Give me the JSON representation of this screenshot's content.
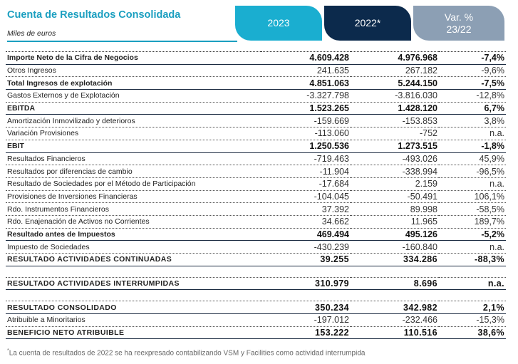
{
  "header": {
    "title": "Cuenta de Resultados Consolidada",
    "subtitle": "Miles de euros",
    "col_2023": "2023",
    "col_2022": "2022*",
    "col_var_1": "Var. %",
    "col_var_2": "23/22"
  },
  "rows": [
    {
      "label": "Importe Neto de la Cifra de Negocios",
      "v2023": "4.609.428",
      "v2022": "4.976.968",
      "var": "-7,4%",
      "bold": true
    },
    {
      "label": "Otros Ingresos",
      "v2023": "241.635",
      "v2022": "267.182",
      "var": "-9,6%"
    },
    {
      "label": "Total Ingresos de explotación",
      "v2023": "4.851.063",
      "v2022": "5.244.150",
      "var": "-7,5%",
      "bold": true
    },
    {
      "label": "Gastos Externos y de Explotación",
      "v2023": "-3.327.798",
      "v2022": "-3.816.030",
      "var": "-12,8%"
    },
    {
      "label": "EBITDA",
      "v2023": "1.523.265",
      "v2022": "1.428.120",
      "var": "6,7%",
      "bold": true
    },
    {
      "label": "Amortización Inmovilizado y deterioros",
      "v2023": "-159.669",
      "v2022": "-153.853",
      "var": "3,8%"
    },
    {
      "label": "Variación Provisiones",
      "v2023": "-113.060",
      "v2022": "-752",
      "var": "n.a."
    },
    {
      "label": "EBIT",
      "v2023": "1.250.536",
      "v2022": "1.273.515",
      "var": "-1,8%",
      "bold": true
    },
    {
      "label": "Resultados Financieros",
      "v2023": "-719.463",
      "v2022": "-493.026",
      "var": "45,9%"
    },
    {
      "label": "Resultados por diferencias de cambio",
      "v2023": "-11.904",
      "v2022": "-338.994",
      "var": "-96,5%"
    },
    {
      "label": "Resultado de Sociedades por el Método de Participación",
      "v2023": "-17.684",
      "v2022": "2.159",
      "var": "n.a."
    },
    {
      "label": "Provisiones de Inversiones Financieras",
      "v2023": "-104.045",
      "v2022": "-50.491",
      "var": "106,1%"
    },
    {
      "label": "Rdo. Instrumentos Financieros",
      "v2023": "37.392",
      "v2022": "89.998",
      "var": "-58,5%"
    },
    {
      "label": "Rdo. Enajenación de Activos no Corrientes",
      "v2023": "34.662",
      "v2022": "11.965",
      "var": "189,7%"
    },
    {
      "label": "Resultado antes de Impuestos",
      "v2023": "469.494",
      "v2022": "495.126",
      "var": "-5,2%",
      "bold": true
    },
    {
      "label": "Impuesto de Sociedades",
      "v2023": "-430.239",
      "v2022": "-160.840",
      "var": "n.a."
    },
    {
      "label": "RESULTADO ACTIVIDADES CONTINUADAS",
      "v2023": "39.255",
      "v2022": "334.286",
      "var": "-88,3%",
      "bold": true
    },
    {
      "label": "RESULTADO ACTIVIDADES INTERRUMPIDAS",
      "v2023": "310.979",
      "v2022": "8.696",
      "var": "n.a.",
      "bold": true
    },
    {
      "label": "RESULTADO CONSOLIDADO",
      "v2023": "350.234",
      "v2022": "342.982",
      "var": "2,1%",
      "bold": true
    },
    {
      "label": "Atribuible a Minoritarios",
      "v2023": "-197.012",
      "v2022": "-232.466",
      "var": "-15,3%"
    },
    {
      "label": "BENEFICIO NETO ATRIBUIBLE",
      "v2023": "153.222",
      "v2022": "110.516",
      "var": "38,6%",
      "bold": true
    }
  ],
  "footnote": {
    "mark": "*",
    "text": "La cuenta de resultados de 2022 se ha reexpresado contabilizando VSM y Facilities como actividad interrumpida"
  }
}
